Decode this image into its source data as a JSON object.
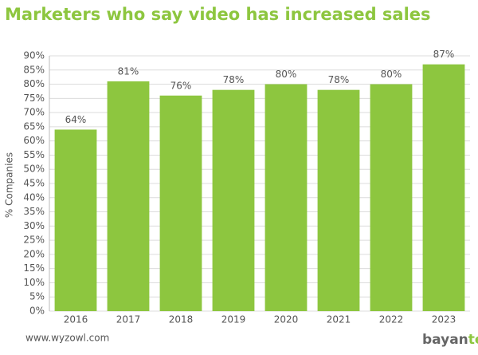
{
  "chart_data": {
    "type": "bar",
    "title": "Marketers who say video has increased sales",
    "y_label": "% Companies",
    "categories": [
      "2016",
      "2017",
      "2018",
      "2019",
      "2020",
      "2021",
      "2022",
      "2023"
    ],
    "values": [
      64,
      81,
      76,
      78,
      80,
      78,
      80,
      87
    ],
    "value_labels": [
      "64%",
      "81%",
      "76%",
      "78%",
      "80%",
      "78%",
      "80%",
      "87%"
    ],
    "color": "#8dc63f",
    "ylim": [
      0,
      90
    ],
    "yticks": [
      {
        "value": 0,
        "label": "0%"
      },
      {
        "value": 5,
        "label": "5%"
      },
      {
        "value": 10,
        "label": "10%"
      },
      {
        "value": 15,
        "label": "15%"
      },
      {
        "value": 20,
        "label": "20%"
      },
      {
        "value": 25,
        "label": "25%"
      },
      {
        "value": 30,
        "label": "30%"
      },
      {
        "value": 35,
        "label": "35%"
      },
      {
        "value": 40,
        "label": "40%"
      },
      {
        "value": 45,
        "label": "45%"
      },
      {
        "value": 50,
        "label": "50%"
      },
      {
        "value": 55,
        "label": "55%"
      },
      {
        "value": 60,
        "label": "60%"
      },
      {
        "value": 65,
        "label": "65%"
      },
      {
        "value": 70,
        "label": "70%"
      },
      {
        "value": 75,
        "label": "75%"
      },
      {
        "value": 80,
        "label": "80%"
      },
      {
        "value": 85,
        "label": "85%"
      },
      {
        "value": 90,
        "label": "90%"
      }
    ],
    "grid": true,
    "source": "www.wyzowl.com",
    "logo": [
      "bayan",
      "tech"
    ]
  }
}
